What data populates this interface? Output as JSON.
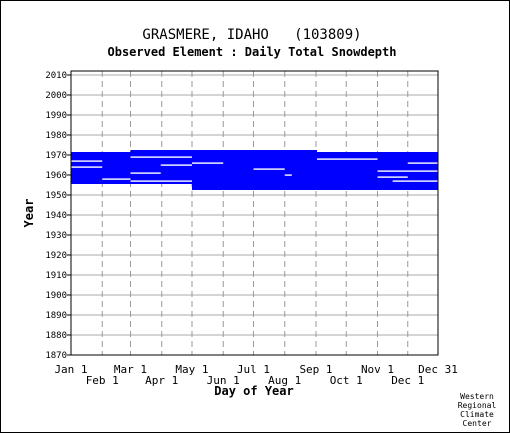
{
  "chart_data": {
    "type": "heatmap",
    "title": "GRASMERE, IDAHO   (103809)",
    "subtitle": "Observed Element : Daily Total Snowdepth",
    "xlabel": "Day of Year",
    "ylabel": "Year",
    "x_ticks_top_row": [
      "Jan 1",
      "Mar 1",
      "May 1",
      "Jul 1",
      "Sep 1",
      "Nov 1",
      "Dec 31"
    ],
    "x_ticks_bottom_row": [
      "Feb 1",
      "Apr 1",
      "Jun 1",
      "Aug 1",
      "Oct 1",
      "Dec 1"
    ],
    "y_ticks": [
      "2010",
      "2000",
      "1990",
      "1980",
      "1970",
      "1960",
      "1950",
      "1940",
      "1930",
      "1920",
      "1910",
      "1900",
      "1890",
      "1880",
      "1870"
    ],
    "x_range_day_of_year": [
      1,
      365
    ],
    "y_range_year": [
      1870,
      2012
    ],
    "grid": true,
    "data_color": "#0000ff",
    "coverage_blocks": [
      {
        "start_day": 1,
        "end_day": 365,
        "start_year": 1955.5,
        "end_year": 1971.5
      },
      {
        "start_day": 60,
        "end_day": 245,
        "start_year": 1971.5,
        "end_year": 1972.5
      },
      {
        "start_day": 121,
        "end_day": 365,
        "start_year": 1952.5,
        "end_year": 1955.5
      }
    ],
    "gap_marks": [
      {
        "start_day": 1,
        "end_day": 32,
        "year": 1964
      },
      {
        "start_day": 1,
        "end_day": 32,
        "year": 1967
      },
      {
        "start_day": 32,
        "end_day": 60,
        "year": 1958
      },
      {
        "start_day": 60,
        "end_day": 90,
        "year": 1961
      },
      {
        "start_day": 60,
        "end_day": 121,
        "year": 1957
      },
      {
        "start_day": 60,
        "end_day": 121,
        "year": 1969
      },
      {
        "start_day": 90,
        "end_day": 121,
        "year": 1965
      },
      {
        "start_day": 121,
        "end_day": 152,
        "year": 1966
      },
      {
        "start_day": 182,
        "end_day": 213,
        "year": 1963
      },
      {
        "start_day": 213,
        "end_day": 220,
        "year": 1960
      },
      {
        "start_day": 245,
        "end_day": 305,
        "year": 1968
      },
      {
        "start_day": 305,
        "end_day": 335,
        "year": 1959
      },
      {
        "start_day": 305,
        "end_day": 365,
        "year": 1962
      },
      {
        "start_day": 320,
        "end_day": 365,
        "year": 1957
      },
      {
        "start_day": 335,
        "end_day": 365,
        "year": 1966
      }
    ]
  },
  "credit": [
    "Western",
    "Regional",
    "Climate",
    "Center"
  ]
}
